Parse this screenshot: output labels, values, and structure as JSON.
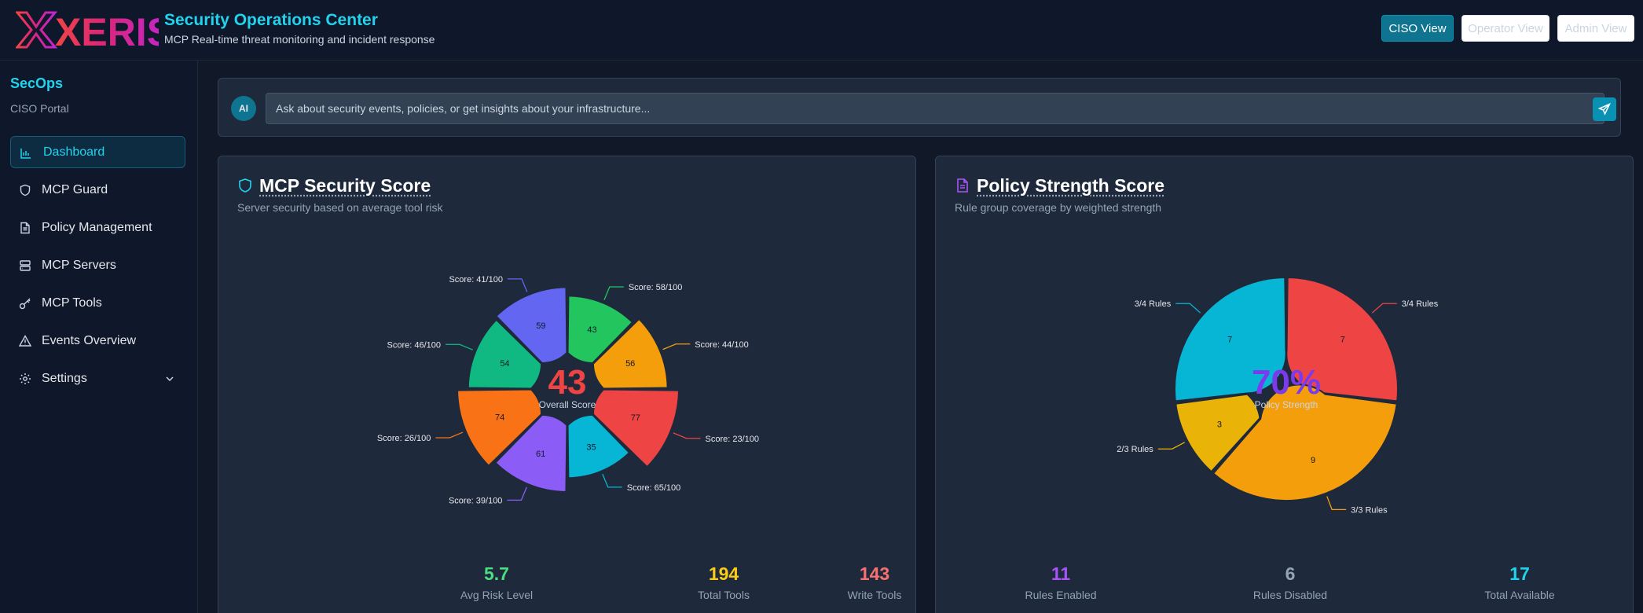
{
  "header": {
    "logo_text": "XERIS",
    "title": "Security Operations Center",
    "subtitle": "MCP Real-time threat monitoring and incident response",
    "views": [
      {
        "label": "CISO View",
        "active": true
      },
      {
        "label": "Operator View",
        "active": false
      },
      {
        "label": "Admin View",
        "active": false
      }
    ]
  },
  "sidebar": {
    "brand": "SecOps",
    "portal": "CISO Portal",
    "items": [
      {
        "label": "Dashboard",
        "icon": "bar-chart-icon",
        "active": true
      },
      {
        "label": "MCP Guard",
        "icon": "shield-icon"
      },
      {
        "label": "Policy Management",
        "icon": "document-icon"
      },
      {
        "label": "MCP Servers",
        "icon": "server-icon"
      },
      {
        "label": "MCP Tools",
        "icon": "key-icon"
      },
      {
        "label": "Events Overview",
        "icon": "warning-icon"
      },
      {
        "label": "Settings",
        "icon": "gear-icon",
        "expandable": true
      }
    ]
  },
  "assistant": {
    "badge": "AI",
    "placeholder": "Ask about security events, policies, or get insights about your infrastructure...",
    "send_icon": "send-icon"
  },
  "security_card": {
    "title": "MCP Security Score",
    "subtitle": "Server security based on average tool risk",
    "center_value": "43",
    "center_label": "Overall Score",
    "center_color": "#ef4444",
    "stats": [
      {
        "value": "5.7",
        "label": "Avg Risk Level",
        "color": "#4ade80"
      },
      {
        "value": "194",
        "label": "Total Tools",
        "color": "#facc15"
      },
      {
        "value": "143",
        "label": "Write Tools",
        "color": "#f87171"
      }
    ]
  },
  "policy_card": {
    "title": "Policy Strength Score",
    "subtitle": "Rule group coverage by weighted strength",
    "center_value": "70%",
    "center_label": "Policy Strength",
    "center_color": "#7c3aed",
    "stats": [
      {
        "value": "11",
        "label": "Rules Enabled",
        "color": "#a855f7"
      },
      {
        "value": "6",
        "label": "Rules Disabled",
        "color": "#94a3b8"
      },
      {
        "value": "17",
        "label": "Total Available",
        "color": "#22d3ee"
      }
    ]
  },
  "chart_data": [
    {
      "type": "pie",
      "variant": "polar-donut",
      "slices": [
        {
          "value": 43,
          "label": "Score: 58/100",
          "color": "#22c55e"
        },
        {
          "value": 56,
          "label": "Score: 44/100",
          "color": "#f59e0b"
        },
        {
          "value": 77,
          "label": "Score: 23/100",
          "color": "#ef4444"
        },
        {
          "value": 35,
          "label": "Score: 65/100",
          "color": "#06b6d4"
        },
        {
          "value": 61,
          "label": "Score: 39/100",
          "color": "#8b5cf6"
        },
        {
          "value": 74,
          "label": "Score: 26/100",
          "color": "#f97316"
        },
        {
          "value": 54,
          "label": "Score: 46/100",
          "color": "#10b981"
        },
        {
          "value": 59,
          "label": "Score: 41/100",
          "color": "#6366f1"
        }
      ]
    },
    {
      "type": "pie",
      "variant": "polar-donut",
      "slices": [
        {
          "value": 7,
          "label": "3/4 Rules",
          "color": "#ef4444"
        },
        {
          "value": 9,
          "label": "3/3 Rules",
          "color": "#f59e0b"
        },
        {
          "value": 3,
          "label": "2/3 Rules",
          "color": "#eab308"
        },
        {
          "value": 7,
          "label": "3/4 Rules",
          "color": "#06b6d4"
        }
      ]
    }
  ]
}
